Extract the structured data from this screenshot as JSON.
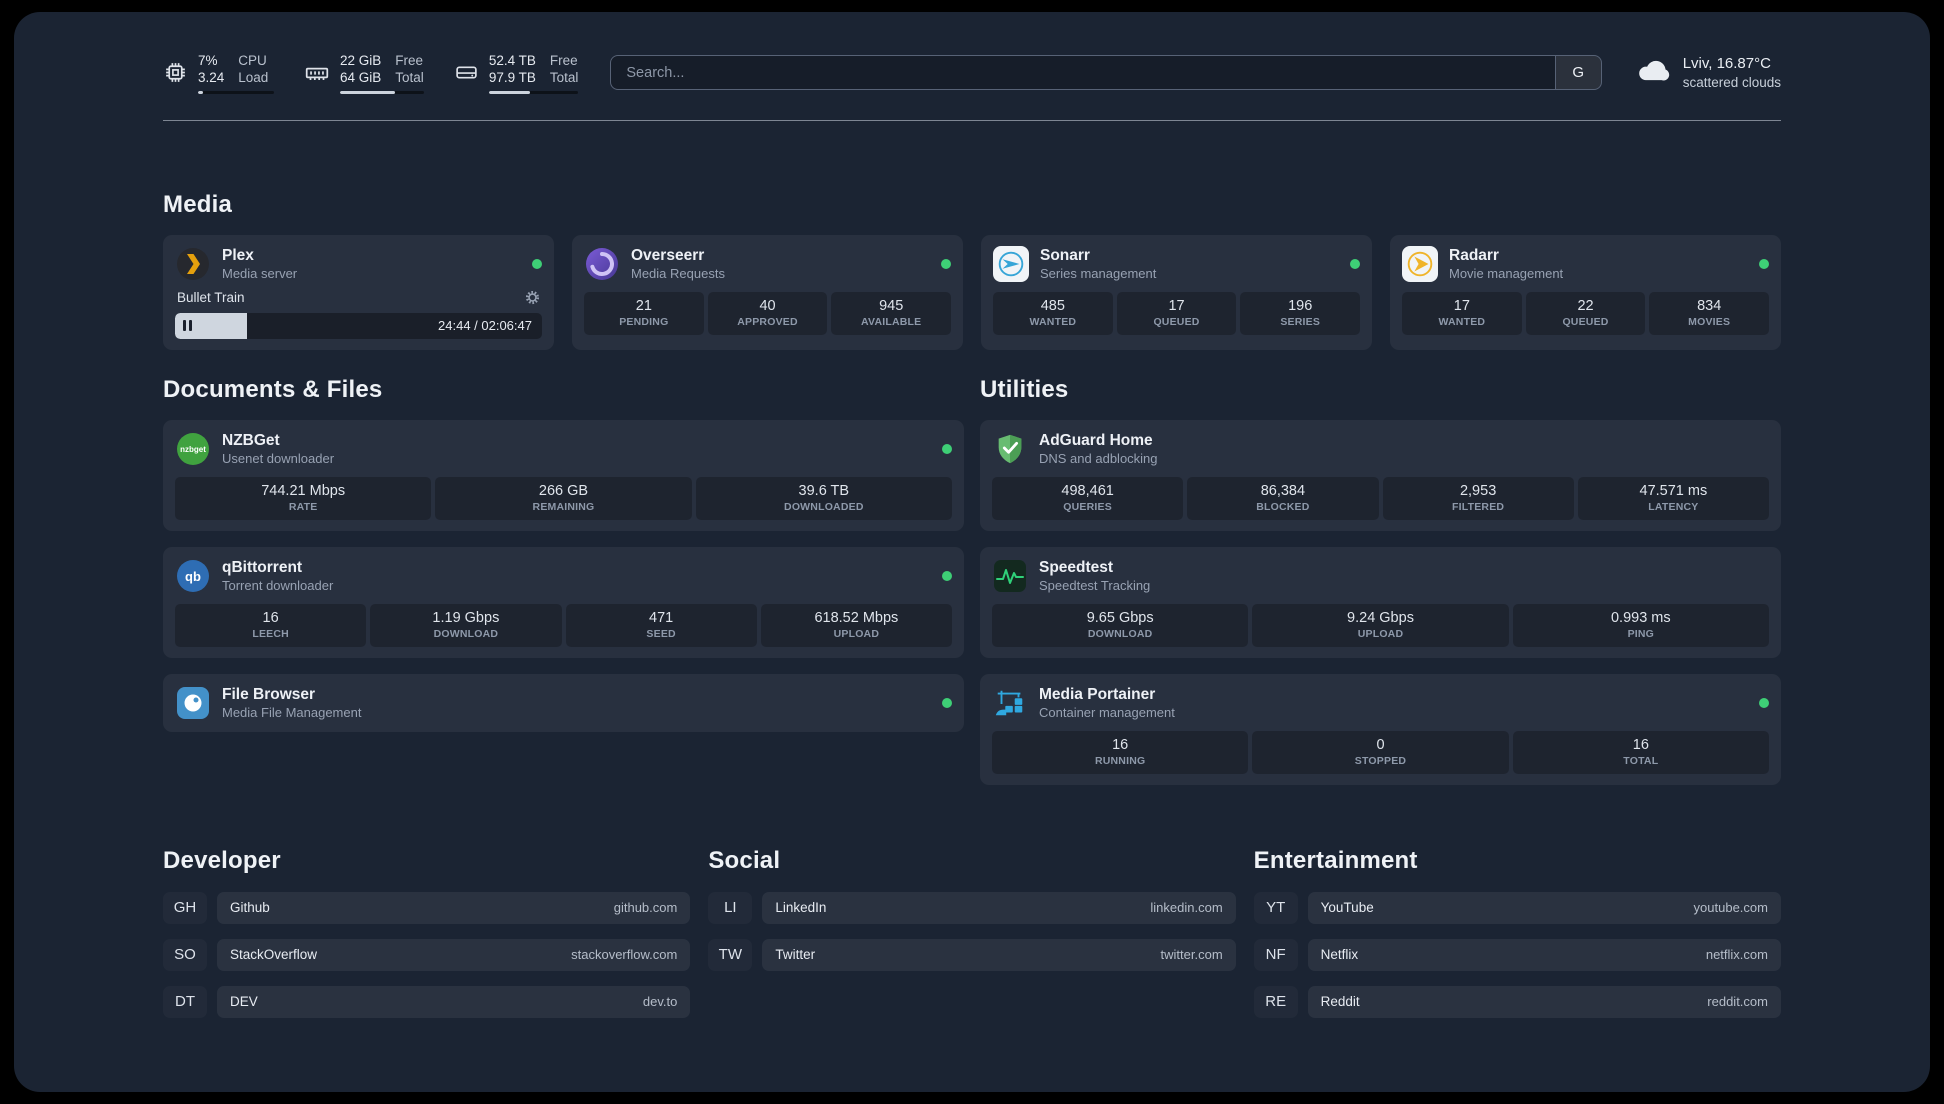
{
  "colors": {
    "status_online": "#3ecf76",
    "plex_accent": "#e5a00d",
    "sonarr_accent": "#36a5d7",
    "radarr_accent": "#f0b429",
    "nzbget_accent": "#40a23f",
    "qbittorrent_accent": "#2e6db4",
    "filebrowser_accent": "#4391c9",
    "adguard_accent": "#63b663",
    "speedtest_accent": "#2fd179",
    "portainer_accent": "#2fa8e0",
    "overseerr_accent": "#6b4fd8"
  },
  "topbar": {
    "cpu": {
      "primary": "7%",
      "secondary": "3.24",
      "label_primary": "CPU",
      "label_secondary": "Load",
      "used_percent": 7
    },
    "memory": {
      "primary": "22 GiB",
      "secondary": "64 GiB",
      "label_primary": "Free",
      "label_secondary": "Total",
      "used_percent": 66
    },
    "disk": {
      "primary": "52.4 TB",
      "secondary": "97.9 TB",
      "label_primary": "Free",
      "label_secondary": "Total",
      "used_percent": 46
    },
    "search": {
      "placeholder": "Search...",
      "provider_label": "G"
    },
    "weather": {
      "location": "Lviv, 16.87°C",
      "condition": "scattered clouds"
    }
  },
  "sections": {
    "media": {
      "title": "Media",
      "plex": {
        "name": "Plex",
        "subtitle": "Media server",
        "status": "online",
        "now_playing": {
          "title": "Bullet Train",
          "time": "24:44 / 02:06:47",
          "progress_percent": 19.5
        }
      },
      "overseerr": {
        "name": "Overseerr",
        "subtitle": "Media Requests",
        "status": "online",
        "stats": [
          {
            "value": "21",
            "label": "PENDING"
          },
          {
            "value": "40",
            "label": "APPROVED"
          },
          {
            "value": "945",
            "label": "AVAILABLE"
          }
        ]
      },
      "sonarr": {
        "name": "Sonarr",
        "subtitle": "Series management",
        "status": "online",
        "stats": [
          {
            "value": "485",
            "label": "WANTED"
          },
          {
            "value": "17",
            "label": "QUEUED"
          },
          {
            "value": "196",
            "label": "SERIES"
          }
        ]
      },
      "radarr": {
        "name": "Radarr",
        "subtitle": "Movie management",
        "status": "online",
        "stats": [
          {
            "value": "17",
            "label": "WANTED"
          },
          {
            "value": "22",
            "label": "QUEUED"
          },
          {
            "value": "834",
            "label": "MOVIES"
          }
        ]
      }
    },
    "documents": {
      "title": "Documents & Files",
      "nzbget": {
        "name": "NZBGet",
        "subtitle": "Usenet downloader",
        "status": "online",
        "stats": [
          {
            "value": "744.21 Mbps",
            "label": "RATE"
          },
          {
            "value": "266 GB",
            "label": "REMAINING"
          },
          {
            "value": "39.6 TB",
            "label": "DOWNLOADED"
          }
        ]
      },
      "qbittorrent": {
        "name": "qBittorrent",
        "subtitle": "Torrent downloader",
        "status": "online",
        "stats": [
          {
            "value": "16",
            "label": "LEECH"
          },
          {
            "value": "1.19 Gbps",
            "label": "DOWNLOAD"
          },
          {
            "value": "471",
            "label": "SEED"
          },
          {
            "value": "618.52 Mbps",
            "label": "UPLOAD"
          }
        ]
      },
      "filebrowser": {
        "name": "File Browser",
        "subtitle": "Media File Management",
        "status": "online"
      }
    },
    "utilities": {
      "title": "Utilities",
      "adguard": {
        "name": "AdGuard Home",
        "subtitle": "DNS and adblocking",
        "stats": [
          {
            "value": "498,461",
            "label": "QUERIES"
          },
          {
            "value": "86,384",
            "label": "BLOCKED"
          },
          {
            "value": "2,953",
            "label": "FILTERED"
          },
          {
            "value": "47.571 ms",
            "label": "LATENCY"
          }
        ]
      },
      "speedtest": {
        "name": "Speedtest",
        "subtitle": "Speedtest Tracking",
        "stats": [
          {
            "value": "9.65 Gbps",
            "label": "DOWNLOAD"
          },
          {
            "value": "9.24 Gbps",
            "label": "UPLOAD"
          },
          {
            "value": "0.993 ms",
            "label": "PING"
          }
        ]
      },
      "portainer": {
        "name": "Media Portainer",
        "subtitle": "Container management",
        "status": "online",
        "stats": [
          {
            "value": "16",
            "label": "RUNNING"
          },
          {
            "value": "0",
            "label": "STOPPED"
          },
          {
            "value": "16",
            "label": "TOTAL"
          }
        ]
      }
    }
  },
  "bookmarks": {
    "developer": {
      "title": "Developer",
      "items": [
        {
          "abbr": "GH",
          "name": "Github",
          "url": "github.com"
        },
        {
          "abbr": "SO",
          "name": "StackOverflow",
          "url": "stackoverflow.com"
        },
        {
          "abbr": "DT",
          "name": "DEV",
          "url": "dev.to"
        }
      ]
    },
    "social": {
      "title": "Social",
      "items": [
        {
          "abbr": "LI",
          "name": "LinkedIn",
          "url": "linkedin.com"
        },
        {
          "abbr": "TW",
          "name": "Twitter",
          "url": "twitter.com"
        }
      ]
    },
    "entertainment": {
      "title": "Entertainment",
      "items": [
        {
          "abbr": "YT",
          "name": "YouTube",
          "url": "youtube.com"
        },
        {
          "abbr": "NF",
          "name": "Netflix",
          "url": "netflix.com"
        },
        {
          "abbr": "RE",
          "name": "Reddit",
          "url": "reddit.com"
        }
      ]
    }
  }
}
